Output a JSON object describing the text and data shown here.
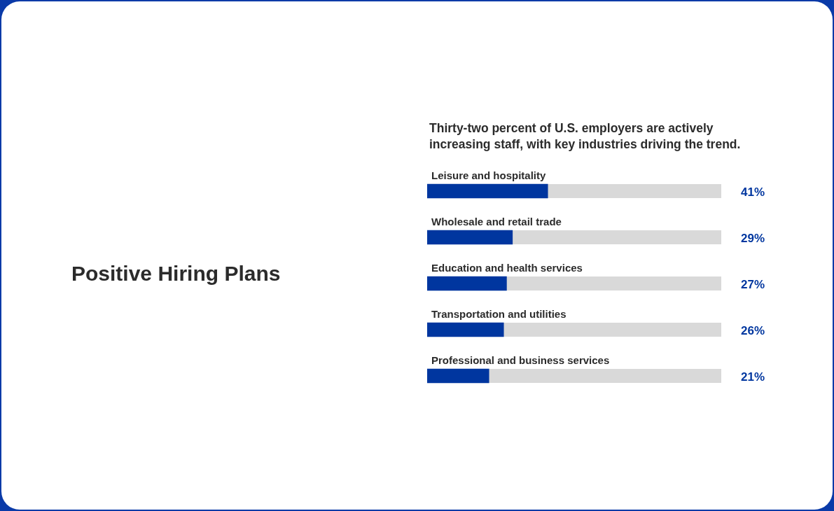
{
  "chart_data": {
    "type": "bar",
    "orientation": "horizontal",
    "title": "Positive Hiring Plans",
    "subtitle": "Thirty-two percent of U.S. employers are actively increasing staff, with key industries driving the trend.",
    "categories": [
      "Leisure and hospitality",
      "Wholesale and retail trade",
      "Education and health services",
      "Transportation and utilities",
      "Professional and business services"
    ],
    "values": [
      41,
      29,
      27,
      26,
      21
    ],
    "value_labels": [
      "41%",
      "29%",
      "27%",
      "26%",
      "21%"
    ],
    "color": "#00369f",
    "xlim": [
      0,
      100
    ]
  }
}
